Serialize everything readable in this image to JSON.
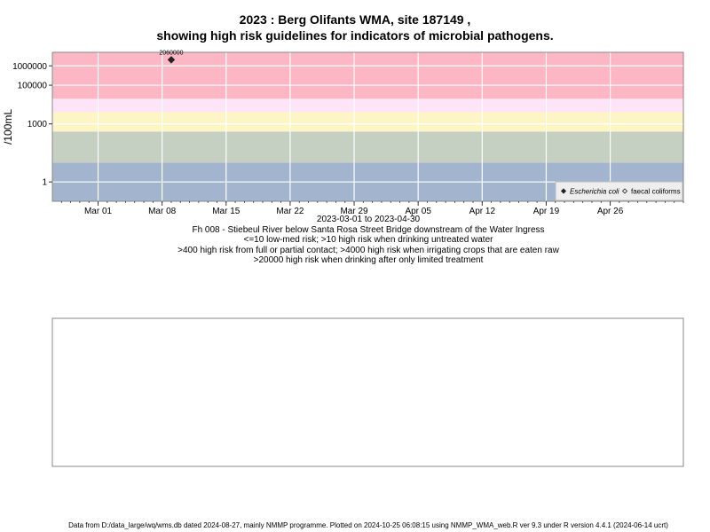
{
  "titles": {
    "line1": "2023 : Berg Olifants WMA, site 187149 ,",
    "line2": "showing high risk guidelines for indicators of microbial pathogens."
  },
  "captions": {
    "date_range": "2023-03-01 to 2023-04-30",
    "site": "Fh 008 - Stiebeul River below Santa Rosa Street Bridge downstream of the Water Ingress",
    "risk1": "<=10 low-med risk; >10 high risk when drinking untreated water",
    "risk2": ">400 high risk from full or partial contact; >4000 high risk when irrigating crops that are eaten raw",
    "risk3": ">20000 high risk when drinking after only limited treatment"
  },
  "footer": "Data from D:/data_large/wq/wms.db dated 2024-08-27, mainly NMMP programme. Plotted on 2024-10-25 06:08:15 using NMMP_WMA_web.R ver 9.3 under R version 4.4.1 (2024-06-14 ucrt)",
  "chart_data": {
    "type": "scatter",
    "ylabel": "/100mL",
    "y_scale": "log",
    "xlim": [
      "2023-02-24",
      "2023-05-04"
    ],
    "ylim": [
      0.1,
      5000000
    ],
    "x_ticks": [
      {
        "date": "2023-03-01",
        "label": "Mar 01"
      },
      {
        "date": "2023-03-08",
        "label": "Mar 08"
      },
      {
        "date": "2023-03-15",
        "label": "Mar 15"
      },
      {
        "date": "2023-03-22",
        "label": "Mar 22"
      },
      {
        "date": "2023-03-29",
        "label": "Mar 29"
      },
      {
        "date": "2023-04-05",
        "label": "Apr 05"
      },
      {
        "date": "2023-04-12",
        "label": "Apr 12"
      },
      {
        "date": "2023-04-19",
        "label": "Apr 19"
      },
      {
        "date": "2023-04-26",
        "label": "Apr 26"
      }
    ],
    "y_ticks": [
      {
        "value": 1,
        "label": "1"
      },
      {
        "value": 1000,
        "label": "1000"
      },
      {
        "value": 100000,
        "label": "100000"
      },
      {
        "value": 1000000,
        "label": "1000000"
      }
    ],
    "bands": [
      {
        "from": 0.1,
        "to": 10,
        "color": "#a3b4cf"
      },
      {
        "from": 10,
        "to": 400,
        "color": "#c5d0c3"
      },
      {
        "from": 400,
        "to": 4000,
        "color": "#fdf5c3"
      },
      {
        "from": 4000,
        "to": 20000,
        "color": "#fde4f6"
      },
      {
        "from": 20000,
        "to": 5000000,
        "color": "#fdb6c3"
      }
    ],
    "series": [
      {
        "name": "Escherichia coli",
        "marker": "filled-diamond",
        "points": [
          {
            "x": "2023-03-09",
            "y": 2060000,
            "label": "2060000"
          }
        ]
      },
      {
        "name": "faecal coliforms",
        "marker": "open-diamond",
        "points": []
      }
    ],
    "legend_position": "bottom-right",
    "grid": true
  }
}
